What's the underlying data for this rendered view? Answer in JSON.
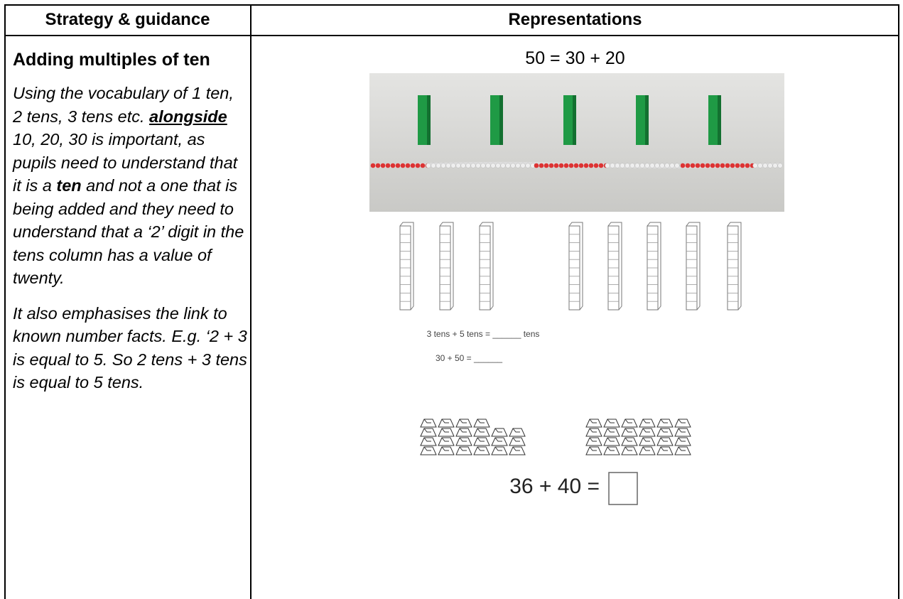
{
  "header": {
    "columns": [
      "Strategy & guidance",
      "Representations"
    ]
  },
  "strategy": {
    "title": "Adding multiples of ten",
    "paragraphs": [
      [
        "Using the vocabulary of 1 ten, 2 tens, 3 tens etc. ",
        "alongside",
        " 10, 20, 30 is important, as pupils need to understand that it is a ",
        "ten",
        " and not a one that is being added and they need to understand that a ‘2’ digit in the tens column has a value of twenty."
      ],
      [
        "It also emphasises the link to known number facts. E.g. ‘2 + 3 is equal to 5. So 2 tens + 3 tens is equal to 5 tens."
      ]
    ]
  },
  "representations": {
    "equation": "50 = 30 + 20",
    "worksheet": [
      "3 tens + 5 tens = ______ tens",
      "30 + 50 = ______"
    ],
    "question": "36 + 40 ="
  }
}
